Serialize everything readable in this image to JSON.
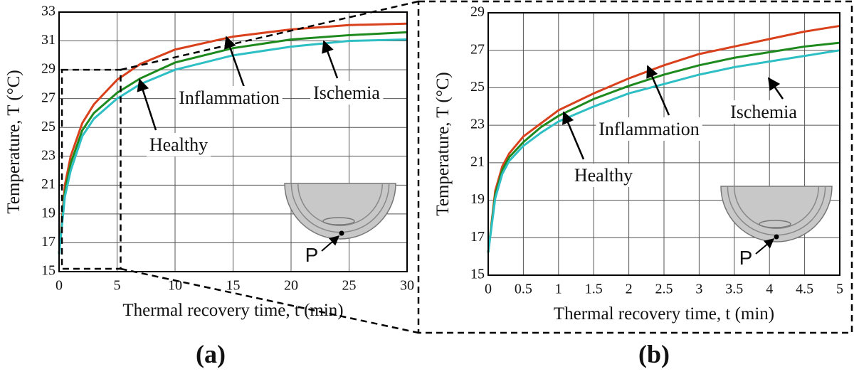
{
  "chart_data": [
    {
      "type": "line",
      "panel_label": "(a)",
      "x_label": "Thermal recovery time, t (min)",
      "y_label": "Temperature, T (°C)",
      "x": [
        0,
        0.5,
        1,
        2,
        3,
        5,
        7,
        10,
        15,
        20,
        25,
        30
      ],
      "series": [
        {
          "name": "Inflammation",
          "color": "#d9401c",
          "values": [
            16.2,
            21,
            23,
            25.3,
            26.6,
            28.3,
            29.4,
            30.4,
            31.3,
            31.8,
            32.1,
            32.2
          ]
        },
        {
          "name": "Healthy",
          "color": "#1e8a1e",
          "values": [
            16.2,
            20.5,
            22.5,
            24.8,
            26,
            27.4,
            28.4,
            29.5,
            30.5,
            31.1,
            31.4,
            31.6
          ]
        },
        {
          "name": "Ischemia",
          "color": "#2ebfc4",
          "values": [
            16.2,
            20.2,
            22,
            24.4,
            25.6,
            27,
            28,
            29,
            30,
            30.6,
            31,
            31.1
          ]
        }
      ],
      "xlim": [
        0,
        30
      ],
      "ylim": [
        15,
        33
      ],
      "xticks": [
        0,
        5,
        10,
        15,
        20,
        25,
        30
      ],
      "yticks": [
        15,
        17,
        19,
        21,
        23,
        25,
        27,
        29,
        31,
        33
      ],
      "grid": true,
      "inset_label": "P"
    },
    {
      "type": "line",
      "panel_label": "(b)",
      "x_label": "Thermal recovery time, t (min)",
      "y_label": "Temperature, T (°C)",
      "x": [
        0,
        0.1,
        0.2,
        0.3,
        0.5,
        0.75,
        1,
        1.5,
        2,
        2.5,
        3,
        3.5,
        4,
        4.5,
        5
      ],
      "series": [
        {
          "name": "Inflammation",
          "color": "#d9401c",
          "values": [
            16.2,
            19.5,
            20.8,
            21.5,
            22.4,
            23.1,
            23.8,
            24.7,
            25.5,
            26.2,
            26.8,
            27.2,
            27.6,
            28,
            28.3
          ]
        },
        {
          "name": "Healthy",
          "color": "#1e8a1e",
          "values": [
            16.2,
            19.3,
            20.6,
            21.3,
            22.1,
            22.9,
            23.5,
            24.4,
            25.1,
            25.7,
            26.2,
            26.6,
            26.9,
            27.2,
            27.4
          ]
        },
        {
          "name": "Ischemia",
          "color": "#2ebfc4",
          "values": [
            16.2,
            19.1,
            20.4,
            21.1,
            21.9,
            22.6,
            23.2,
            24,
            24.7,
            25.2,
            25.7,
            26.1,
            26.4,
            26.7,
            27
          ]
        }
      ],
      "xlim": [
        0,
        5
      ],
      "ylim": [
        15,
        29
      ],
      "xticks": [
        0,
        0.5,
        1,
        1.5,
        2,
        2.5,
        3,
        3.5,
        4,
        4.5,
        5
      ],
      "yticks": [
        15,
        17,
        19,
        21,
        23,
        25,
        27,
        29
      ],
      "grid": true,
      "inset_label": "P"
    }
  ]
}
